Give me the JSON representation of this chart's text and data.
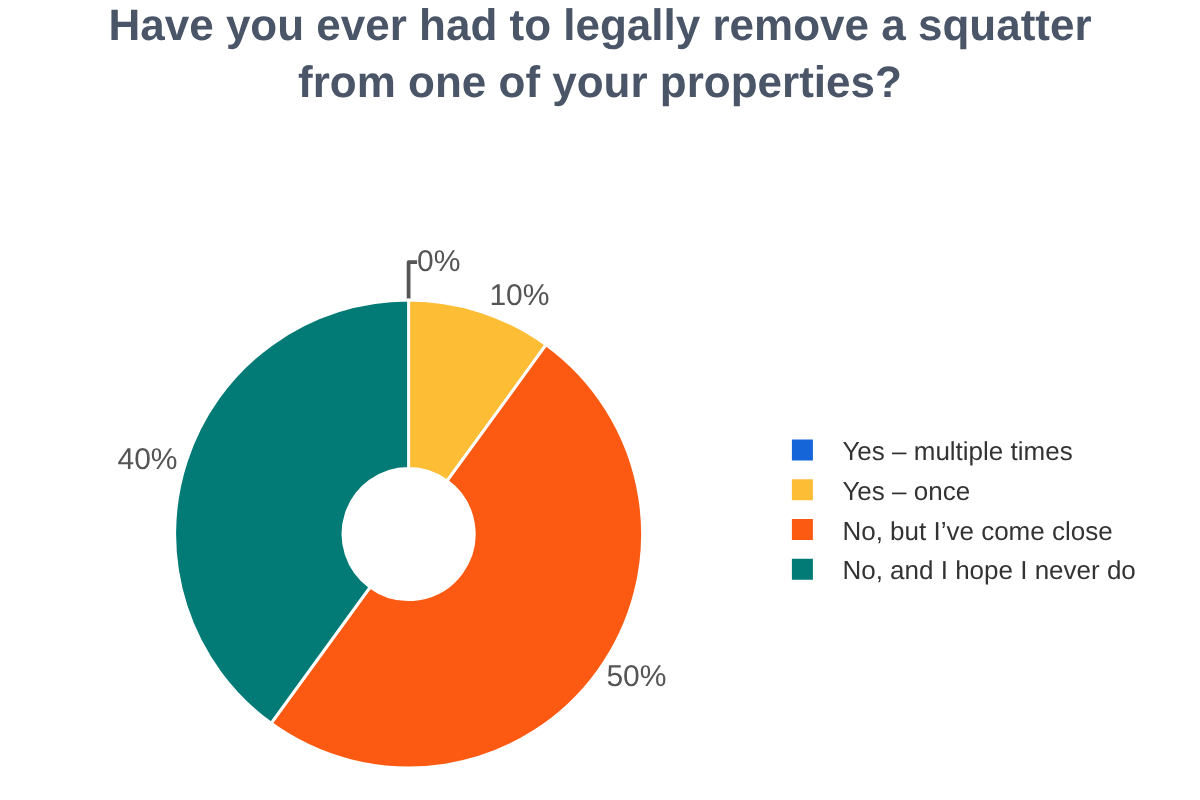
{
  "chart_data": {
    "type": "donut",
    "title": "Have you ever had to legally remove a squatter from one of your properties?",
    "categories": [
      "Yes – multiple times",
      "Yes – once",
      "No, but I’ve come close",
      "No, and I hope I never do"
    ],
    "values": [
      0,
      10,
      50,
      40
    ],
    "value_labels": [
      "0%",
      "10%",
      "50%",
      "40%"
    ],
    "colors": [
      "#1565d8",
      "#fdbd35",
      "#fc5a12",
      "#027b77"
    ],
    "legend": "right"
  }
}
